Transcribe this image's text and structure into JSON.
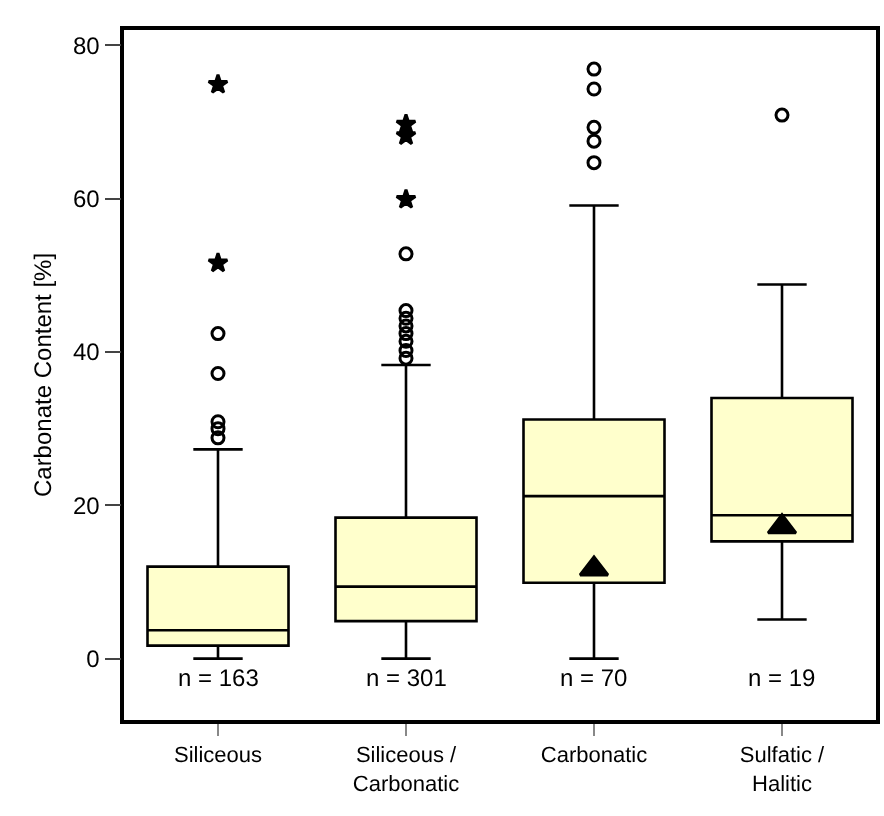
{
  "chart_data": {
    "type": "box",
    "ylabel": "Carbonate Content [%]",
    "categories": [
      "Siliceous",
      "Siliceous / Carbonatic",
      "Carbonatic",
      "Sulfatic / Halitic"
    ],
    "ylim": [
      -8,
      82
    ],
    "yticks": [
      0,
      20,
      40,
      60,
      80
    ],
    "grid": false,
    "series": [
      {
        "color": "#ffffcc",
        "boxes": [
          {
            "low": 0,
            "q1": 1.7,
            "median": 3.7,
            "q3": 12.0,
            "high": 27.3,
            "outliers": [
              42.4,
              37.2,
              30.9,
              30.0,
              28.8
            ]
          },
          {
            "low": 0,
            "q1": 4.9,
            "median": 9.4,
            "q3": 18.4,
            "high": 38.3,
            "outliers": [
              52.8,
              45.4,
              44.4,
              43.4,
              42.4,
              41.4,
              40.2,
              39.2
            ]
          },
          {
            "low": 0,
            "q1": 9.9,
            "median": 21.2,
            "q3": 31.2,
            "high": 59.1,
            "outliers": [
              76.9,
              74.3,
              69.3,
              67.5,
              64.7
            ]
          },
          {
            "low": 5.1,
            "q1": 15.3,
            "median": 18.7,
            "q3": 34.0,
            "high": 48.8,
            "outliers": [
              70.9
            ]
          }
        ]
      },
      {
        "type": "scatter",
        "marker": "star",
        "color": "#000000",
        "x": [
          "Siliceous",
          "Siliceous",
          "Siliceous / Carbonatic",
          "Siliceous / Carbonatic",
          "Siliceous / Carbonatic"
        ],
        "values": [
          74.9,
          51.6,
          69.7,
          68.2,
          59.9
        ]
      },
      {
        "type": "scatter",
        "marker": "triangle",
        "color": "#000000",
        "x": [
          "Carbonatic",
          "Sulfatic / Halitic"
        ],
        "values": [
          11.7,
          17.2
        ]
      }
    ],
    "annotations": [
      "n = 163",
      "n = 301",
      "n = 70",
      "n = 19"
    ]
  }
}
